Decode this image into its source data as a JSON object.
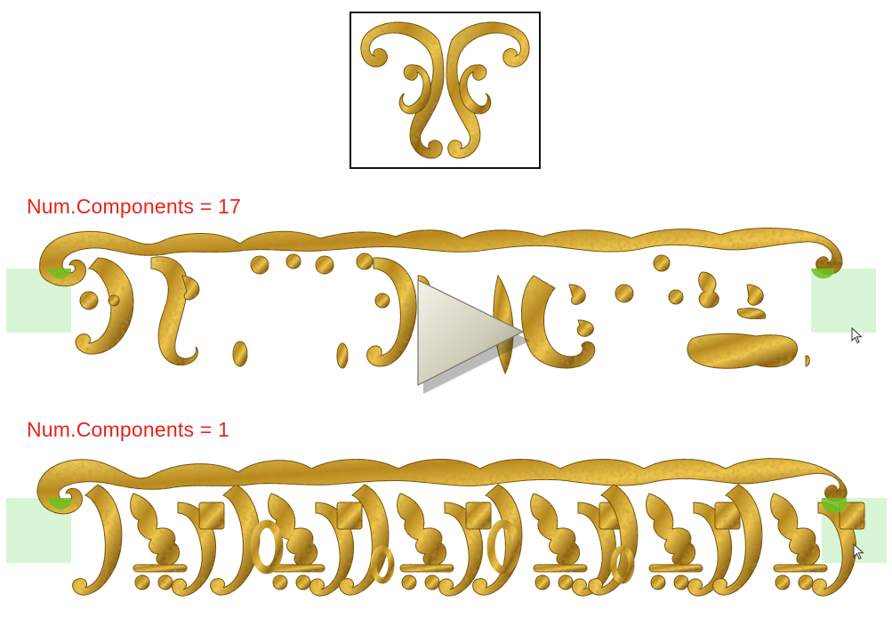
{
  "labels": {
    "top_strip": "Num.Components = 17",
    "bottom_strip": "Num.Components = 1"
  },
  "icons": {
    "component": "ornament-icon",
    "play": "play-icon",
    "cursor": "mouse-cursor-icon"
  },
  "colors": {
    "label": "#e8231b",
    "gold_light": "#f3cf5a",
    "gold_mid": "#c99a26",
    "gold_dark": "#7a5510",
    "selection_fill": "#d8f5d6",
    "selection_knob": "#6cc01e",
    "frame": "#111111"
  }
}
